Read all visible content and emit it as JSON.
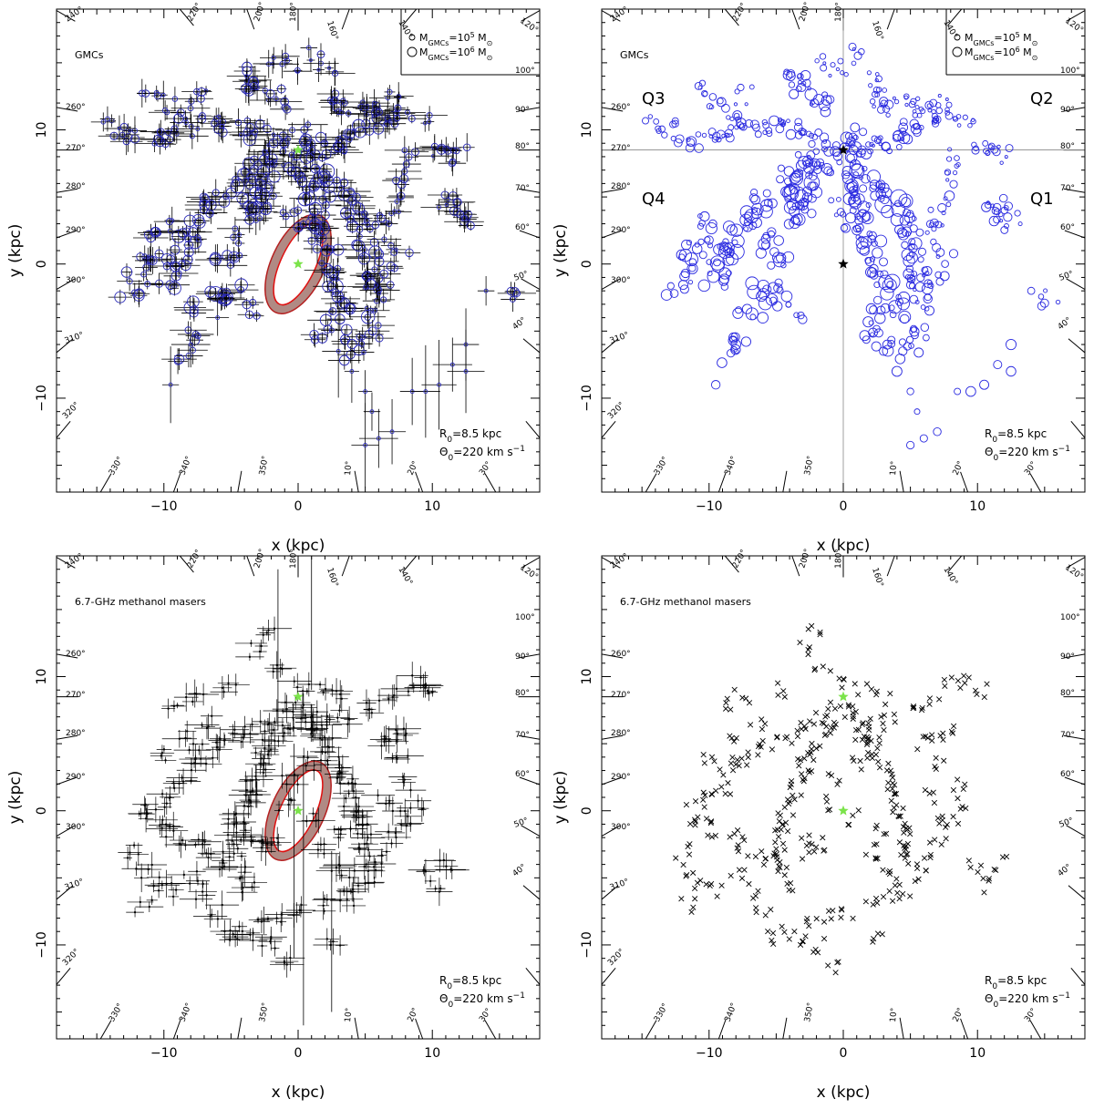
{
  "chart_data": [
    {
      "type": "scatter",
      "panel_id": "gmc_errors",
      "sample_label": "GMCs",
      "xlabel": "x (kpc)",
      "ylabel": "y (kpc)",
      "xlim": [
        -18,
        18
      ],
      "ylim": [
        -17,
        19
      ],
      "xticks": [
        -10,
        0,
        10
      ],
      "yticks": [
        -10,
        0,
        10
      ],
      "grid": false,
      "legend_placement": "top-right",
      "legend": [
        {
          "mass_label": "M_GMCs = 10^5 M_sun",
          "marker": "small-circle"
        },
        {
          "mass_label": "M_GMCs = 10^6 M_sun",
          "marker": "large-circle"
        }
      ],
      "params": [
        "R0=8.5 kpc",
        "Θ0=220 km s-1"
      ],
      "sun": [
        0,
        8.5
      ],
      "galactic_center": [
        0,
        0
      ],
      "bar_ellipse": {
        "center": [
          0,
          0
        ],
        "semi_major_kpc": 3.3,
        "semi_minor_kpc": 1.3,
        "angle_deg": 65,
        "shaded": true
      },
      "longitude_labels": [
        "120°",
        "140°",
        "160°",
        "180°",
        "200°",
        "220°",
        "240°",
        "260°",
        "270°",
        "280°",
        "290°",
        "300°",
        "310°",
        "320°",
        "330°",
        "340°",
        "350°",
        "10°",
        "20°",
        "30°",
        "40°",
        "50°",
        "60°",
        "70°",
        "80°",
        "90°",
        "100°"
      ],
      "marker_color": "#2a2ab8",
      "error_bars": true,
      "quadrant_labels": []
    },
    {
      "type": "scatter",
      "panel_id": "gmc_quadrants",
      "sample_label": "GMCs",
      "xlabel": "x (kpc)",
      "ylabel": "y (kpc)",
      "xlim": [
        -18,
        18
      ],
      "ylim": [
        -17,
        19
      ],
      "xticks": [
        -10,
        0,
        10
      ],
      "yticks": [
        -10,
        0,
        10
      ],
      "grid": false,
      "legend_placement": "top-right",
      "legend": [
        {
          "mass_label": "M_GMCs = 10^5 M_sun",
          "marker": "small-circle"
        },
        {
          "mass_label": "M_GMCs = 10^6 M_sun",
          "marker": "large-circle"
        }
      ],
      "params": [
        "R0=8.5 kpc",
        "Θ0=220 km s-1"
      ],
      "sun": [
        0,
        8.5
      ],
      "galactic_center": [
        0,
        0
      ],
      "bar_ellipse": null,
      "longitude_labels": [
        "120°",
        "140°",
        "160°",
        "180°",
        "200°",
        "220°",
        "240°",
        "260°",
        "270°",
        "280°",
        "290°",
        "300°",
        "310°",
        "320°",
        "330°",
        "340°",
        "350°",
        "10°",
        "20°",
        "30°",
        "40°",
        "50°",
        "60°",
        "70°",
        "80°",
        "90°",
        "100°"
      ],
      "marker_color": "#2a2ae0",
      "error_bars": false,
      "quadrant_labels": [
        "Q1",
        "Q2",
        "Q3",
        "Q4"
      ]
    },
    {
      "type": "scatter",
      "panel_id": "maser_errors",
      "sample_label": "6.7-GHz methanol masers",
      "xlabel": "x (kpc)",
      "ylabel": "y (kpc)",
      "xlim": [
        -18,
        18
      ],
      "ylim": [
        -17,
        19
      ],
      "xticks": [
        -10,
        0,
        10
      ],
      "yticks": [
        -10,
        0,
        10
      ],
      "grid": false,
      "legend_placement": "none",
      "legend": [],
      "params": [
        "R0=8.5 kpc",
        "Θ0=220 km s-1"
      ],
      "sun": [
        0,
        8.5
      ],
      "galactic_center": [
        0,
        0
      ],
      "bar_ellipse": {
        "center": [
          0,
          0
        ],
        "semi_major_kpc": 3.3,
        "semi_minor_kpc": 1.3,
        "angle_deg": 65,
        "shaded": true
      },
      "longitude_labels": [
        "120°",
        "140°",
        "160°",
        "180°",
        "200°",
        "220°",
        "240°",
        "260°",
        "270°",
        "280°",
        "290°",
        "300°",
        "310°",
        "320°",
        "330°",
        "340°",
        "350°",
        "10°",
        "20°",
        "30°",
        "40°",
        "50°",
        "60°",
        "70°",
        "80°",
        "90°",
        "100°"
      ],
      "marker_color": "#000000",
      "error_bars": true,
      "quadrant_labels": []
    },
    {
      "type": "scatter",
      "panel_id": "maser_points",
      "sample_label": "6.7-GHz methanol masers",
      "xlabel": "x (kpc)",
      "ylabel": "y (kpc)",
      "xlim": [
        -18,
        18
      ],
      "ylim": [
        -17,
        19
      ],
      "xticks": [
        -10,
        0,
        10
      ],
      "yticks": [
        -10,
        0,
        10
      ],
      "grid": false,
      "legend_placement": "none",
      "legend": [],
      "params": [
        "R0=8.5 kpc",
        "Θ0=220 km s-1"
      ],
      "sun": [
        0,
        8.5
      ],
      "galactic_center": [
        0,
        0
      ],
      "bar_ellipse": null,
      "longitude_labels": [
        "120°",
        "140°",
        "160°",
        "180°",
        "200°",
        "220°",
        "240°",
        "260°",
        "270°",
        "280°",
        "290°",
        "300°",
        "310°",
        "320°",
        "330°",
        "340°",
        "350°",
        "10°",
        "20°",
        "30°",
        "40°",
        "50°",
        "60°",
        "70°",
        "80°",
        "90°",
        "100°"
      ],
      "marker_color": "#000000",
      "error_bars": false,
      "quadrant_labels": []
    }
  ],
  "gmc_points": [
    [
      0.5,
      8.0,
      1.2
    ],
    [
      1.2,
      8.3,
      0.8
    ],
    [
      2.0,
      8.6,
      1.0
    ],
    [
      2.8,
      9.0,
      0.7
    ],
    [
      3.5,
      9.4,
      1.1
    ],
    [
      4.2,
      9.8,
      0.9
    ],
    [
      5.0,
      10.1,
      1.3
    ],
    [
      5.8,
      10.5,
      1.0
    ],
    [
      6.5,
      10.9,
      0.8
    ],
    [
      7.2,
      11.3,
      0.7
    ],
    [
      0.8,
      7.0,
      1.0
    ],
    [
      1.5,
      6.5,
      1.4
    ],
    [
      2.2,
      6.0,
      1.2
    ],
    [
      2.9,
      5.5,
      1.1
    ],
    [
      3.6,
      5.0,
      1.6
    ],
    [
      4.0,
      4.3,
      1.3
    ],
    [
      4.3,
      3.5,
      1.2
    ],
    [
      4.6,
      2.7,
      1.0
    ],
    [
      4.9,
      1.9,
      1.1
    ],
    [
      5.1,
      1.0,
      0.9
    ],
    [
      5.3,
      0.2,
      1.2
    ],
    [
      5.5,
      -0.6,
      1.0
    ],
    [
      5.6,
      -1.4,
      0.8
    ],
    [
      5.7,
      -2.2,
      1.1
    ],
    [
      5.8,
      -3.0,
      0.9
    ],
    [
      4.5,
      -3.5,
      1.3
    ],
    [
      3.8,
      -2.8,
      1.2
    ],
    [
      3.2,
      -2.0,
      1.4
    ],
    [
      2.8,
      -1.2,
      1.1
    ],
    [
      2.5,
      -0.3,
      1.0
    ],
    [
      2.2,
      0.5,
      1.2
    ],
    [
      2.0,
      1.4,
      1.3
    ],
    [
      1.8,
      2.3,
      1.1
    ],
    [
      1.6,
      3.2,
      1.5
    ],
    [
      1.4,
      4.0,
      1.2
    ],
    [
      1.2,
      4.8,
      1.4
    ],
    [
      1.0,
      5.5,
      1.3
    ],
    [
      0.8,
      6.2,
      1.0
    ],
    [
      6.5,
      -2.0,
      0.8
    ],
    [
      6.8,
      -0.5,
      0.9
    ],
    [
      7.5,
      1.0,
      0.8
    ],
    [
      6.0,
      2.5,
      0.9
    ],
    [
      6.8,
      3.5,
      0.7
    ],
    [
      7.5,
      4.5,
      0.9
    ],
    [
      8.0,
      6.5,
      0.8
    ],
    [
      8.5,
      8.0,
      0.7
    ],
    [
      11.0,
      4.5,
      0.9
    ],
    [
      11.5,
      4.2,
      0.8
    ],
    [
      12.0,
      3.8,
      0.9
    ],
    [
      12.5,
      3.2,
      0.7
    ],
    [
      -1.0,
      8.8,
      0.9
    ],
    [
      -1.8,
      9.0,
      1.0
    ],
    [
      -2.6,
      9.5,
      0.8
    ],
    [
      -3.5,
      9.9,
      1.1
    ],
    [
      -4.3,
      10.3,
      0.9
    ],
    [
      -5.2,
      10.0,
      1.0
    ],
    [
      -6.0,
      10.3,
      0.8
    ],
    [
      -7.0,
      10.6,
      0.9
    ],
    [
      -8.0,
      10.2,
      0.7
    ],
    [
      -9.0,
      9.8,
      0.8
    ],
    [
      -10.0,
      9.5,
      0.7
    ],
    [
      -11.0,
      9.2,
      0.9
    ],
    [
      -12.0,
      9.6,
      0.8
    ],
    [
      -13.0,
      10.0,
      0.7
    ],
    [
      -14.0,
      10.4,
      0.6
    ],
    [
      -4.0,
      14.0,
      1.0
    ],
    [
      -3.5,
      13.5,
      0.9
    ],
    [
      -3.0,
      13.0,
      1.1
    ],
    [
      -2.0,
      12.5,
      0.8
    ],
    [
      -1.5,
      12.0,
      1.0
    ],
    [
      -2.8,
      7.5,
      1.0
    ],
    [
      -3.4,
      7.0,
      1.2
    ],
    [
      -4.0,
      6.5,
      1.0
    ],
    [
      -4.5,
      6.0,
      1.3
    ],
    [
      -3.0,
      6.0,
      1.4
    ],
    [
      -2.6,
      5.5,
      1.2
    ],
    [
      -3.2,
      5.0,
      1.6
    ],
    [
      -3.8,
      4.5,
      1.3
    ],
    [
      -2.9,
      4.0,
      1.1
    ],
    [
      -3.5,
      3.5,
      1.2
    ],
    [
      -6.0,
      5.0,
      1.0
    ],
    [
      -6.5,
      4.3,
      1.2
    ],
    [
      -7.0,
      3.7,
      1.1
    ],
    [
      -7.5,
      3.0,
      1.3
    ],
    [
      -8.0,
      2.3,
      1.2
    ],
    [
      -8.4,
      1.6,
      1.4
    ],
    [
      -8.7,
      0.9,
      1.2
    ],
    [
      -9.0,
      0.2,
      1.3
    ],
    [
      -9.3,
      -0.5,
      1.1
    ],
    [
      -9.6,
      -1.2,
      1.2
    ],
    [
      -10.0,
      3.0,
      1.0
    ],
    [
      -10.5,
      2.0,
      1.1
    ],
    [
      -11.0,
      1.0,
      1.0
    ],
    [
      -11.5,
      0.0,
      1.2
    ],
    [
      -12.0,
      -1.0,
      1.0
    ],
    [
      -12.5,
      -2.0,
      1.1
    ],
    [
      -6.0,
      -2.0,
      1.4
    ],
    [
      -5.3,
      -2.5,
      1.3
    ],
    [
      -4.6,
      -2.0,
      1.2
    ],
    [
      -3.8,
      -3.5,
      1.0
    ],
    [
      -7.5,
      -3.5,
      1.1
    ],
    [
      -8.0,
      -5.5,
      1.0
    ],
    [
      -8.5,
      -7.0,
      1.0
    ],
    [
      -5.0,
      2.0,
      1.0
    ],
    [
      -5.5,
      1.0,
      1.1
    ],
    [
      -4.8,
      0.0,
      1.2
    ],
    [
      1.8,
      -5.0,
      1.0
    ],
    [
      2.5,
      -4.0,
      1.1
    ],
    [
      3.0,
      -5.5,
      1.0
    ],
    [
      4.0,
      -6.5,
      1.0
    ],
    [
      5.0,
      -6.0,
      1.0
    ],
    [
      6.0,
      -5.0,
      0.9
    ],
    [
      15.5,
      -2.5,
      0.8
    ],
    [
      2.5,
      12.0,
      0.8
    ],
    [
      3.0,
      12.5,
      0.7
    ],
    [
      3.5,
      11.8,
      0.9
    ],
    [
      4.5,
      12.2,
      0.8
    ],
    [
      5.5,
      11.5,
      0.7
    ],
    [
      6.0,
      12.0,
      0.8
    ],
    [
      7.0,
      12.2,
      0.7
    ],
    [
      -0.5,
      7.5,
      1.0
    ],
    [
      0.3,
      9.3,
      1.2
    ],
    [
      1.0,
      9.8,
      1.0
    ],
    [
      -1.8,
      8.0,
      0.9
    ],
    [
      -2.2,
      7.2,
      1.1
    ],
    [
      0.5,
      3.0,
      1.2
    ],
    [
      -0.8,
      4.2,
      1.0
    ],
    [
      8.0,
      11.0,
      0.7
    ],
    [
      9.0,
      10.8,
      0.6
    ],
    [
      10.0,
      8.7,
      0.7
    ],
    [
      11.0,
      8.5,
      0.8
    ],
    [
      12.0,
      8.2,
      0.7
    ],
    [
      -1.5,
      15.0,
      0.7
    ],
    [
      -0.5,
      14.5,
      0.6
    ],
    [
      1.0,
      15.5,
      0.7
    ],
    [
      2.0,
      14.0,
      0.6
    ],
    [
      -11.0,
      13.0,
      0.7
    ],
    [
      -9.5,
      12.0,
      0.8
    ],
    [
      -8.5,
      11.5,
      0.9
    ],
    [
      -7.5,
      12.5,
      0.8
    ]
  ],
  "gmc_sparse_points": [
    [
      3.0,
      -6.5
    ],
    [
      4.0,
      -8.0
    ],
    [
      5.0,
      -9.5
    ],
    [
      5.5,
      -11.0
    ],
    [
      5.0,
      -13.5
    ],
    [
      6.0,
      -13.0
    ],
    [
      7.0,
      -12.5
    ],
    [
      8.5,
      -9.5
    ],
    [
      9.5,
      -9.5
    ],
    [
      10.5,
      -9.0
    ],
    [
      11.5,
      -7.5
    ],
    [
      12.5,
      -6.0
    ],
    [
      12.5,
      -8.0
    ],
    [
      14.0,
      -2.0
    ],
    [
      -9.5,
      -9.0
    ],
    [
      -8.0,
      -6.0
    ],
    [
      -6.0,
      -4.0
    ]
  ],
  "maser_points": [
    [
      -0.3,
      7.5
    ],
    [
      0.3,
      7.2
    ],
    [
      0.8,
      6.8
    ],
    [
      -0.8,
      6.5
    ],
    [
      1.2,
      6.2
    ],
    [
      -1.3,
      6.0
    ],
    [
      1.6,
      5.5
    ],
    [
      -1.8,
      5.2
    ],
    [
      2.0,
      5.0
    ],
    [
      -2.2,
      4.7
    ],
    [
      2.4,
      4.3
    ],
    [
      -2.5,
      4.0
    ],
    [
      2.8,
      3.7
    ],
    [
      -2.8,
      3.3
    ],
    [
      3.2,
      3.0
    ],
    [
      -3.2,
      2.5
    ],
    [
      3.5,
      2.2
    ],
    [
      -3.5,
      1.8
    ],
    [
      3.8,
      1.5
    ],
    [
      -3.8,
      1.0
    ],
    [
      4.0,
      0.8
    ],
    [
      -4.0,
      0.2
    ],
    [
      4.2,
      0.0
    ],
    [
      -4.2,
      -0.5
    ],
    [
      4.4,
      -0.8
    ],
    [
      -4.5,
      -1.2
    ],
    [
      4.6,
      -1.5
    ],
    [
      -4.7,
      -2.0
    ],
    [
      4.8,
      -2.3
    ],
    [
      -4.9,
      -2.8
    ],
    [
      5.0,
      -3.0
    ],
    [
      -5.0,
      -3.5
    ],
    [
      5.2,
      -3.8
    ],
    [
      -5.3,
      -4.0
    ],
    [
      3.0,
      -4.0
    ],
    [
      2.0,
      -3.0
    ],
    [
      -2.0,
      -2.5
    ],
    [
      -2.5,
      -3.0
    ],
    [
      -3.0,
      -2.2
    ],
    [
      1.5,
      5.8
    ],
    [
      2.5,
      6.5
    ],
    [
      3.5,
      7.0
    ],
    [
      -1.5,
      7.0
    ],
    [
      -2.5,
      6.5
    ],
    [
      -3.5,
      6.0
    ],
    [
      -4.5,
      5.5
    ],
    [
      -5.5,
      5.0
    ],
    [
      -6.5,
      4.5
    ],
    [
      -7.5,
      4.0
    ],
    [
      -8.0,
      3.5
    ],
    [
      -8.5,
      2.5
    ],
    [
      -9.0,
      1.5
    ],
    [
      -10.0,
      0.8
    ],
    [
      -11.0,
      0.3
    ],
    [
      -11.5,
      -0.5
    ],
    [
      -10.5,
      -1.0
    ],
    [
      -9.5,
      -1.5
    ],
    [
      -8.5,
      -2.0
    ],
    [
      -7.5,
      -2.5
    ],
    [
      -6.5,
      -3.0
    ],
    [
      6.0,
      5.0
    ],
    [
      7.0,
      5.5
    ],
    [
      8.0,
      6.0
    ],
    [
      7.5,
      3.5
    ],
    [
      8.5,
      2.0
    ],
    [
      9.0,
      0.5
    ],
    [
      8.0,
      -1.0
    ],
    [
      7.0,
      -2.0
    ],
    [
      6.0,
      -3.5
    ],
    [
      5.5,
      -5.0
    ],
    [
      4.5,
      -6.0
    ],
    [
      3.5,
      -6.5
    ],
    [
      2.0,
      -7.0
    ],
    [
      0.5,
      -7.5
    ],
    [
      -1.0,
      -8.0
    ],
    [
      -2.5,
      -8.5
    ],
    [
      -4.0,
      -9.0
    ],
    [
      -6.0,
      -7.5
    ],
    [
      -7.0,
      -6.0
    ],
    [
      -8.0,
      -5.0
    ],
    [
      -9.5,
      -6.0
    ],
    [
      -10.5,
      -5.5
    ],
    [
      -11.5,
      -7.0
    ],
    [
      -11.5,
      -4.5
    ],
    [
      10.5,
      -5.5
    ],
    [
      11.5,
      -4.0
    ],
    [
      10.0,
      -4.0
    ],
    [
      5.5,
      7.5
    ],
    [
      6.5,
      8.2
    ],
    [
      8.0,
      9.5
    ],
    [
      -3.0,
      12.0
    ],
    [
      -2.0,
      13.5
    ],
    [
      -1.5,
      10.5
    ],
    [
      0.0,
      9.5
    ],
    [
      1.5,
      9.0
    ],
    [
      3.0,
      8.5
    ],
    [
      -5.0,
      9.0
    ],
    [
      -7.5,
      8.5
    ],
    [
      -9.0,
      8.0
    ],
    [
      9.0,
      9.5
    ],
    [
      10.0,
      9.0
    ],
    [
      -12.0,
      -3.0
    ],
    [
      -1.0,
      0.5
    ],
    [
      1.0,
      -0.5
    ],
    [
      -0.5,
      2.5
    ],
    [
      0.8,
      3.5
    ],
    [
      2.8,
      -1.5
    ],
    [
      -3.5,
      -5.5
    ],
    [
      -4.5,
      -4.5
    ],
    [
      3.8,
      -5.0
    ],
    [
      -6.5,
      6.5
    ],
    [
      -8.5,
      5.5
    ],
    [
      -10.0,
      4.0
    ],
    [
      6.5,
      1.0
    ],
    [
      7.5,
      -0.5
    ],
    [
      -2.0,
      -10.0
    ],
    [
      -1.0,
      -11.5
    ],
    [
      2.5,
      -9.5
    ],
    [
      -3.0,
      -9.5
    ],
    [
      -5.0,
      -9.5
    ]
  ]
}
